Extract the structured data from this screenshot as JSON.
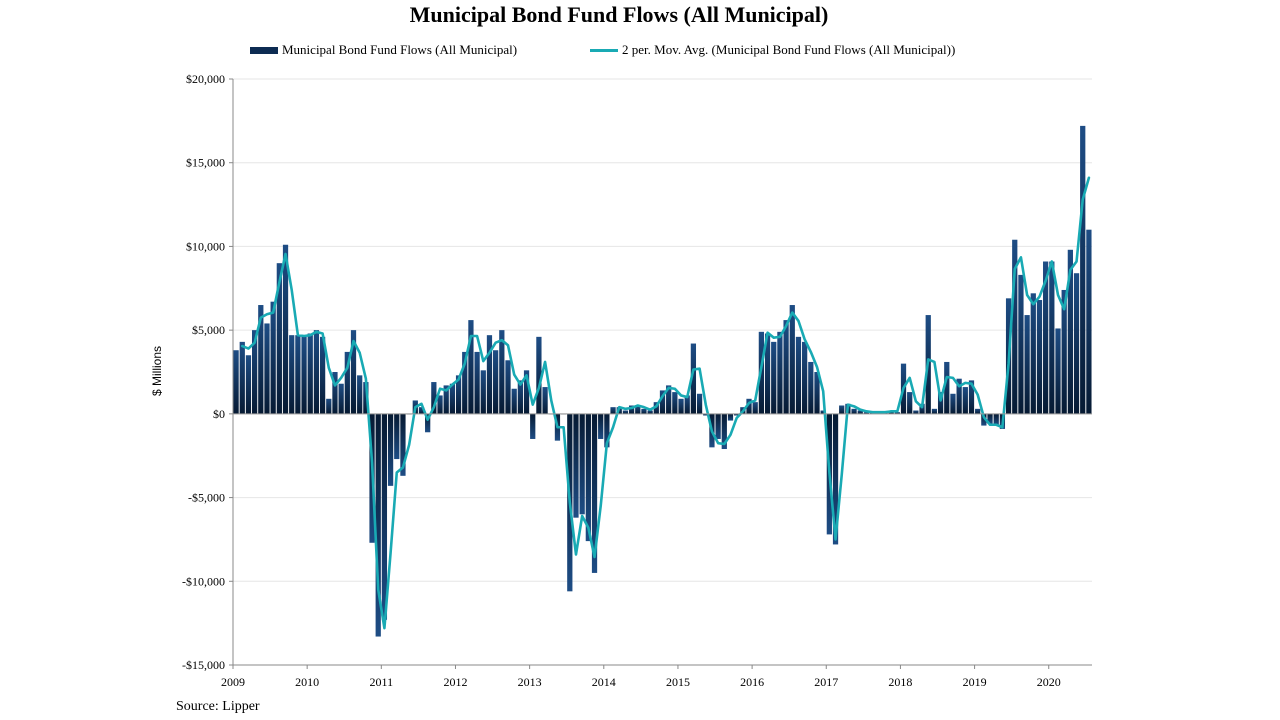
{
  "chart_data": {
    "type": "bar",
    "title": "Municipal Bond Fund Flows (All Municipal)",
    "ylabel": "$ Millions",
    "ylim": [
      -15000,
      20000
    ],
    "yticks": [
      {
        "value": 20000,
        "label": "$20,000"
      },
      {
        "value": 15000,
        "label": "$15,000"
      },
      {
        "value": 10000,
        "label": "$10,000"
      },
      {
        "value": 5000,
        "label": "$5,000"
      },
      {
        "value": 0,
        "label": "$0"
      },
      {
        "value": -5000,
        "label": "-$5,000"
      },
      {
        "value": -10000,
        "label": "-$10,000"
      },
      {
        "value": -15000,
        "label": "-$15,000"
      }
    ],
    "xtick_labels": [
      "2009",
      "2010",
      "2011",
      "2012",
      "2013",
      "2014",
      "2015",
      "2016",
      "2017",
      "2018",
      "2019",
      "2020"
    ],
    "grid": true,
    "legend_position": "top",
    "source": "Source: Lipper",
    "series": [
      {
        "name": "Municipal Bond Fund Flows (All Municipal)",
        "type": "bar",
        "color": "#0d2b52",
        "values": [
          3800,
          4300,
          3500,
          5000,
          6500,
          5400,
          6700,
          9000,
          10100,
          4700,
          4700,
          4600,
          4800,
          5000,
          4600,
          900,
          2500,
          1800,
          3700,
          5000,
          2300,
          1900,
          -7700,
          -13300,
          -12300,
          -4300,
          -2700,
          -3700,
          0,
          800,
          400,
          -1100,
          1900,
          1100,
          1700,
          1800,
          2300,
          3700,
          5600,
          3700,
          2600,
          4700,
          3800,
          5000,
          3200,
          1500,
          2000,
          2600,
          -1500,
          4600,
          1600,
          0,
          -1600,
          0,
          -10600,
          -6200,
          -6000,
          -7600,
          -9500,
          -1500,
          -2000,
          400,
          400,
          200,
          500,
          500,
          300,
          200,
          700,
          1400,
          1700,
          1300,
          900,
          1100,
          4200,
          1200,
          -100,
          -2000,
          -1500,
          -2100,
          -400,
          -100,
          400,
          900,
          700,
          4900,
          4800,
          4300,
          4900,
          5600,
          6500,
          4600,
          4300,
          3100,
          2500,
          200,
          -7200,
          -7800,
          500,
          600,
          300,
          200,
          100,
          100,
          100,
          100,
          200,
          100,
          3000,
          1300,
          200,
          600,
          5900,
          300,
          1300,
          3100,
          1200,
          2100,
          1600,
          2000,
          300,
          -700,
          -600,
          -700,
          -900,
          6900,
          10400,
          8300,
          5900,
          7200,
          6800,
          9100,
          9100,
          5100,
          7400,
          9800,
          8400,
          17200,
          11000
        ]
      },
      {
        "name": "2 per. Mov. Avg. (Municipal Bond Fund Flows (All Municipal))",
        "type": "line",
        "color": "#19aab4",
        "values": [
          null,
          4050,
          3900,
          4250,
          5750,
          5950,
          6050,
          7850,
          9550,
          7400,
          4700,
          4650,
          4700,
          4900,
          4800,
          2750,
          1700,
          2150,
          2750,
          4350,
          3650,
          2100,
          -2900,
          -10500,
          -12800,
          -8300,
          -3500,
          -3200,
          -1850,
          400,
          600,
          -350,
          400,
          1500,
          1400,
          1750,
          2050,
          3000,
          4650,
          4650,
          3150,
          3650,
          4250,
          4400,
          4100,
          2350,
          1750,
          2300,
          550,
          1550,
          3100,
          800,
          -800,
          -800,
          -5300,
          -8400,
          -6100,
          -6800,
          -8550,
          -5500,
          -1750,
          -800,
          400,
          300,
          350,
          500,
          400,
          250,
          450,
          1050,
          1550,
          1500,
          1100,
          1000,
          2650,
          2700,
          550,
          -1050,
          -1750,
          -1800,
          -1250,
          -250,
          150,
          650,
          800,
          2800,
          4850,
          4550,
          4600,
          5250,
          6050,
          5550,
          4450,
          3700,
          2800,
          1350,
          -3500,
          -7500,
          -3650,
          550,
          450,
          250,
          150,
          100,
          100,
          100,
          150,
          150,
          1550,
          2150,
          750,
          400,
          3250,
          3100,
          800,
          2200,
          2150,
          1650,
          1850,
          1800,
          1150,
          -200,
          -650,
          -650,
          -800,
          3000,
          8650,
          9350,
          7100,
          6550,
          7000,
          7950,
          9100,
          7100,
          6250,
          8600,
          9100,
          12800,
          14100
        ]
      }
    ]
  }
}
